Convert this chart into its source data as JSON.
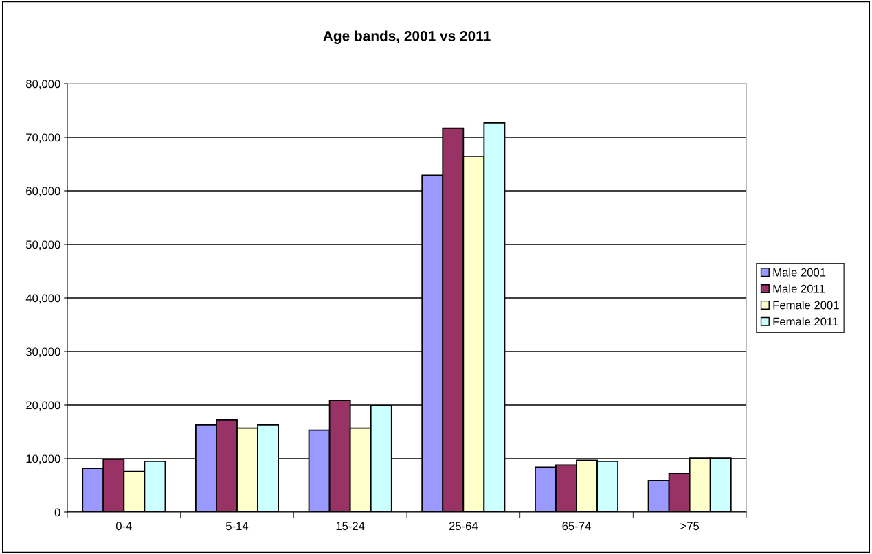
{
  "chart_data": {
    "type": "bar",
    "title": "Age bands, 2001 vs 2011",
    "categories": [
      "0-4",
      "5-14",
      "15-24",
      "25-64",
      "65-74",
      ">75"
    ],
    "series": [
      {
        "name": "Male 2001",
        "color": "#9999ff",
        "values": [
          8200,
          16300,
          15300,
          62900,
          8400,
          5900
        ]
      },
      {
        "name": "Male 2011",
        "color": "#993366",
        "values": [
          9900,
          17200,
          20900,
          71700,
          8800,
          7200
        ]
      },
      {
        "name": "Female 2001",
        "color": "#ffffcc",
        "values": [
          7600,
          15700,
          15700,
          66400,
          9700,
          10100
        ]
      },
      {
        "name": "Female 2011",
        "color": "#ccffff",
        "values": [
          9500,
          16300,
          19900,
          72700,
          9500,
          10100
        ]
      }
    ],
    "ylim": [
      0,
      80000
    ],
    "yticks": [
      {
        "value": 0,
        "label": "0"
      },
      {
        "value": 10000,
        "label": "10,000"
      },
      {
        "value": 20000,
        "label": "20,000"
      },
      {
        "value": 30000,
        "label": "30,000"
      },
      {
        "value": 40000,
        "label": "40,000"
      },
      {
        "value": 50000,
        "label": "50,000"
      },
      {
        "value": 60000,
        "label": "60,000"
      },
      {
        "value": 70000,
        "label": "70,000"
      },
      {
        "value": 80000,
        "label": "80,000"
      }
    ],
    "grid": "y",
    "legend": "right"
  }
}
